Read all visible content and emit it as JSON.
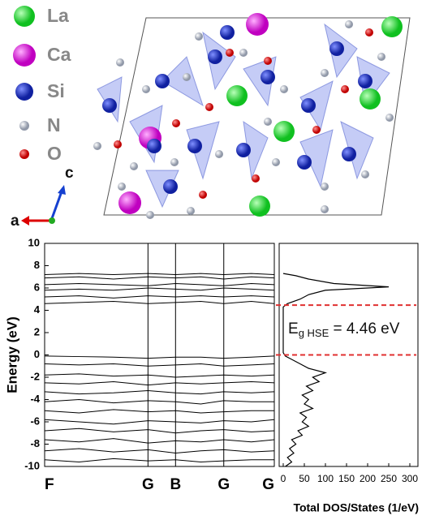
{
  "structure": {
    "legend": [
      "La",
      "Ca",
      "Si",
      "N",
      "O"
    ],
    "axes": [
      "a",
      "c"
    ]
  },
  "chart_data": [
    {
      "type": "line",
      "ylabel": "Energy (eV)",
      "color": "#000000",
      "xlim": [
        0,
        1
      ],
      "xticks": [
        {
          "value": 0,
          "label": "F"
        },
        {
          "value": 0.45,
          "label": "G"
        },
        {
          "value": 0.57,
          "label": "B"
        },
        {
          "value": 0.78,
          "label": "G"
        },
        {
          "value": 1,
          "label": "G"
        }
      ],
      "ylim": [
        -10,
        10
      ],
      "yticks": [
        -10,
        -8,
        -6,
        -4,
        -2,
        0,
        2,
        4,
        6,
        8,
        10
      ],
      "grid": "x",
      "x": [
        0,
        0.15,
        0.3,
        0.45,
        0.57,
        0.68,
        0.78,
        0.9,
        1
      ],
      "series": [
        {
          "values": [
            -0.1,
            -0.15,
            -0.2,
            -0.3,
            -0.2,
            -0.2,
            -0.3,
            -0.2,
            -0.1
          ]
        },
        {
          "values": [
            -0.8,
            -0.9,
            -0.8,
            -1.0,
            -0.9,
            -0.8,
            -1.0,
            -0.9,
            -0.8
          ]
        },
        {
          "values": [
            -1.8,
            -1.7,
            -1.9,
            -1.8,
            -2.0,
            -1.9,
            -1.8,
            -1.9,
            -1.8
          ]
        },
        {
          "values": [
            -2.5,
            -2.6,
            -2.4,
            -2.7,
            -2.5,
            -2.6,
            -2.5,
            -2.4,
            -2.5
          ]
        },
        {
          "values": [
            -3.3,
            -3.5,
            -3.4,
            -3.2,
            -3.4,
            -3.5,
            -3.3,
            -3.4,
            -3.3
          ]
        },
        {
          "values": [
            -4.2,
            -4.0,
            -4.3,
            -4.1,
            -4.2,
            -4.4,
            -4.1,
            -4.2,
            -4.2
          ]
        },
        {
          "values": [
            -5.0,
            -5.2,
            -4.9,
            -5.1,
            -5.0,
            -5.2,
            -5.1,
            -5.0,
            -5.0
          ]
        },
        {
          "values": [
            -5.8,
            -6.0,
            -6.2,
            -5.9,
            -6.0,
            -6.1,
            -5.9,
            -6.0,
            -5.8
          ]
        },
        {
          "values": [
            -6.8,
            -6.6,
            -6.9,
            -6.7,
            -7.0,
            -6.8,
            -6.7,
            -6.9,
            -6.8
          ]
        },
        {
          "values": [
            -7.6,
            -7.8,
            -7.5,
            -7.9,
            -7.7,
            -7.8,
            -7.6,
            -7.8,
            -7.6
          ]
        },
        {
          "values": [
            -8.6,
            -8.4,
            -8.7,
            -8.5,
            -8.8,
            -8.6,
            -8.5,
            -8.7,
            -8.6
          ]
        },
        {
          "values": [
            -9.4,
            -9.6,
            -9.3,
            -9.5,
            -9.4,
            -9.6,
            -9.5,
            -9.4,
            -9.4
          ]
        },
        {
          "values": [
            4.6,
            4.7,
            4.8,
            4.6,
            4.7,
            4.8,
            4.6,
            4.8,
            4.6
          ]
        },
        {
          "values": [
            5.2,
            5.3,
            5.1,
            5.3,
            5.2,
            5.3,
            5.2,
            5.3,
            5.2
          ]
        },
        {
          "values": [
            5.8,
            5.9,
            5.8,
            6.0,
            5.9,
            5.8,
            6.0,
            5.9,
            5.8
          ]
        },
        {
          "values": [
            6.3,
            6.4,
            6.3,
            6.2,
            6.4,
            6.3,
            6.2,
            6.4,
            6.3
          ]
        },
        {
          "values": [
            6.9,
            7.0,
            6.8,
            7.0,
            6.9,
            7.0,
            6.8,
            7.0,
            6.9
          ]
        },
        {
          "values": [
            7.2,
            7.3,
            7.2,
            7.3,
            7.2,
            7.3,
            7.2,
            7.3,
            7.2
          ]
        }
      ]
    },
    {
      "type": "dos",
      "xlabel": "Total DOS/States (1/eV)",
      "color": "#000000",
      "xlim": [
        0,
        300
      ],
      "xticks": [
        0,
        50,
        100,
        150,
        200,
        250,
        300
      ],
      "ylim": [
        -10,
        10
      ],
      "x": [
        5,
        20,
        10,
        25,
        15,
        30,
        20,
        45,
        35,
        60,
        45,
        55,
        40,
        70,
        50,
        60,
        45,
        70,
        55,
        85,
        70,
        100,
        60,
        40,
        20,
        5,
        0,
        0,
        10,
        40,
        60,
        100,
        250,
        120,
        60,
        30,
        0
      ],
      "y": [
        -10,
        -9.6,
        -9.2,
        -8.8,
        -8.4,
        -8,
        -7.6,
        -7.2,
        -6.8,
        -6.4,
        -6,
        -5.6,
        -5.2,
        -4.8,
        -4.4,
        -4,
        -3.6,
        -3.2,
        -2.8,
        -2.4,
        -2,
        -1.6,
        -1.2,
        -0.8,
        -0.4,
        -0.1,
        0.2,
        4.3,
        4.6,
        5,
        5.4,
        5.8,
        6.1,
        6.4,
        6.8,
        7.1,
        7.3
      ],
      "hlines": [
        4.46,
        0
      ],
      "hline_color": "#e03030",
      "annotation": {
        "symbol": "E",
        "subscript": "g HSE",
        "text": " = 4.46 eV"
      }
    }
  ]
}
